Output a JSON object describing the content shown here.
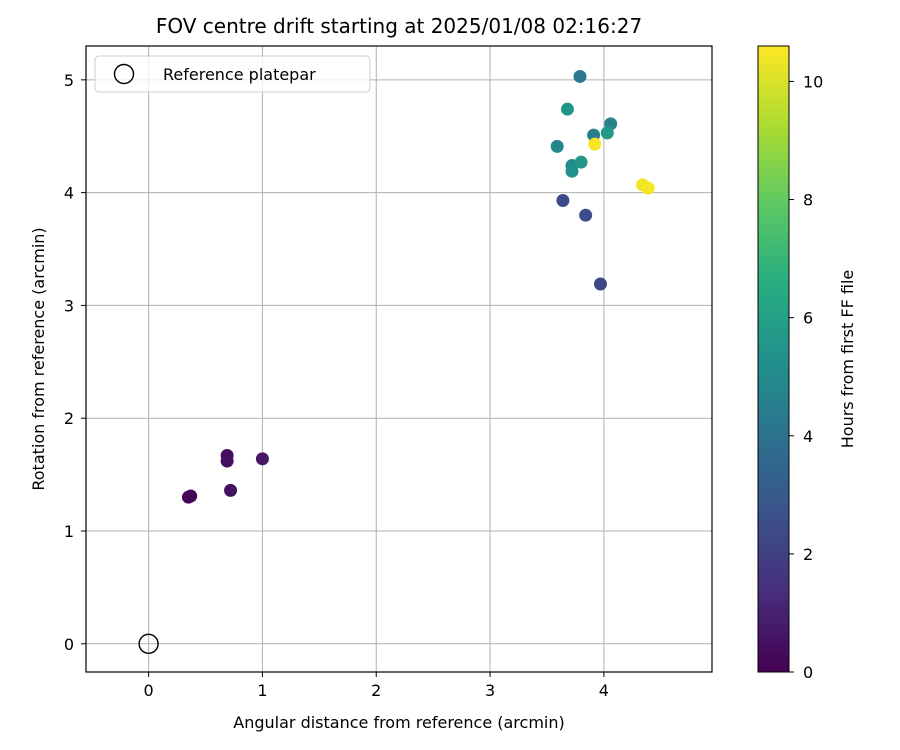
{
  "chart_data": {
    "type": "scatter",
    "title": "FOV centre drift starting at 2025/01/08 02:16:27",
    "xlabel": "Angular distance from reference (arcmin)",
    "ylabel": "Rotation from reference (arcmin)",
    "xlim": [
      -0.55,
      4.95
    ],
    "ylim": [
      -0.25,
      5.3
    ],
    "x_ticks": [
      0,
      1,
      2,
      3,
      4
    ],
    "y_ticks": [
      0,
      1,
      2,
      3,
      4,
      5
    ],
    "grid": true,
    "legend": {
      "placement": "top-left",
      "entries": [
        "Reference platepar"
      ]
    },
    "reference_point": {
      "x": 0,
      "y": 0,
      "label": "Reference platepar"
    },
    "colorbar": {
      "label": "Hours from first FF file",
      "range": [
        0,
        10.6
      ],
      "ticks": [
        0,
        2,
        4,
        6,
        8,
        10
      ],
      "colormap": "viridis"
    },
    "points": [
      {
        "x": 0.35,
        "y": 1.3,
        "hours": 0.1
      },
      {
        "x": 0.37,
        "y": 1.31,
        "hours": 0.2
      },
      {
        "x": 0.69,
        "y": 1.67,
        "hours": 0.3
      },
      {
        "x": 0.69,
        "y": 1.62,
        "hours": 0.4
      },
      {
        "x": 0.72,
        "y": 1.36,
        "hours": 0.5
      },
      {
        "x": 1.0,
        "y": 1.64,
        "hours": 0.6
      },
      {
        "x": 3.64,
        "y": 3.93,
        "hours": 2.4
      },
      {
        "x": 3.84,
        "y": 3.8,
        "hours": 2.5
      },
      {
        "x": 3.97,
        "y": 3.19,
        "hours": 2.3
      },
      {
        "x": 3.79,
        "y": 5.03,
        "hours": 4.2
      },
      {
        "x": 3.68,
        "y": 4.74,
        "hours": 5.5
      },
      {
        "x": 3.59,
        "y": 4.41,
        "hours": 4.8
      },
      {
        "x": 3.91,
        "y": 4.51,
        "hours": 4.5
      },
      {
        "x": 4.06,
        "y": 4.61,
        "hours": 4.6
      },
      {
        "x": 4.03,
        "y": 4.53,
        "hours": 5.7
      },
      {
        "x": 3.72,
        "y": 4.24,
        "hours": 5.0
      },
      {
        "x": 3.72,
        "y": 4.19,
        "hours": 5.3
      },
      {
        "x": 3.8,
        "y": 4.27,
        "hours": 5.6
      },
      {
        "x": 3.92,
        "y": 4.43,
        "hours": 10.5
      },
      {
        "x": 4.34,
        "y": 4.07,
        "hours": 10.4
      },
      {
        "x": 4.39,
        "y": 4.04,
        "hours": 10.5
      }
    ]
  }
}
